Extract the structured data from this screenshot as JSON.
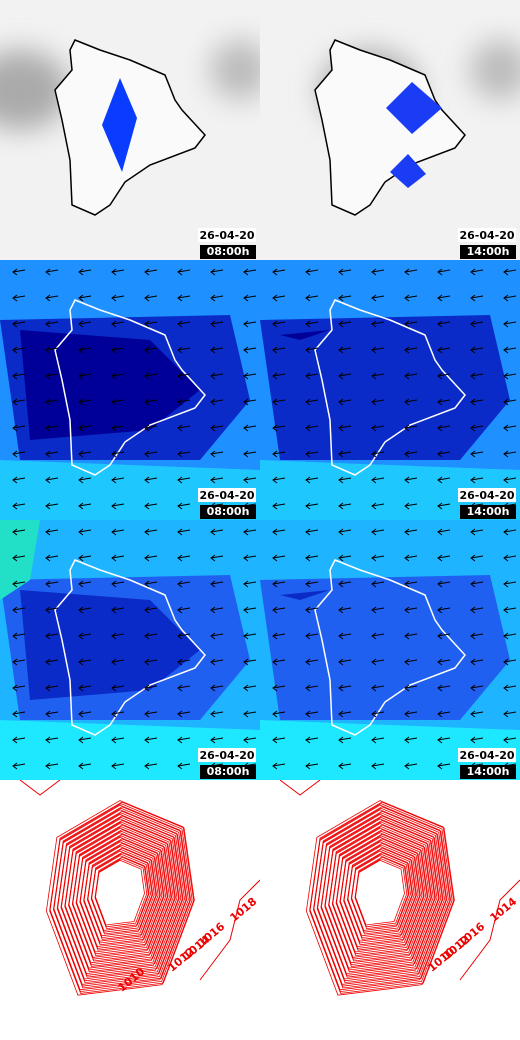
{
  "panels": [
    {
      "date": "26-04-20",
      "time": "08:00h"
    },
    {
      "date": "26-04-20",
      "time": "14:00h"
    },
    {
      "date": "26-04-20",
      "time": "08:00h"
    },
    {
      "date": "26-04-20",
      "time": "14:00h"
    },
    {
      "date": "26-04-20",
      "time": "08:00h"
    },
    {
      "date": "26-04-20",
      "time": "14:00h"
    }
  ],
  "pressure_labels": [
    {
      "left": [
        "1018",
        "1016",
        "1014",
        "1012",
        "1010"
      ]
    },
    {
      "right": [
        "1014",
        "1016",
        "1012",
        "1010"
      ]
    }
  ]
}
